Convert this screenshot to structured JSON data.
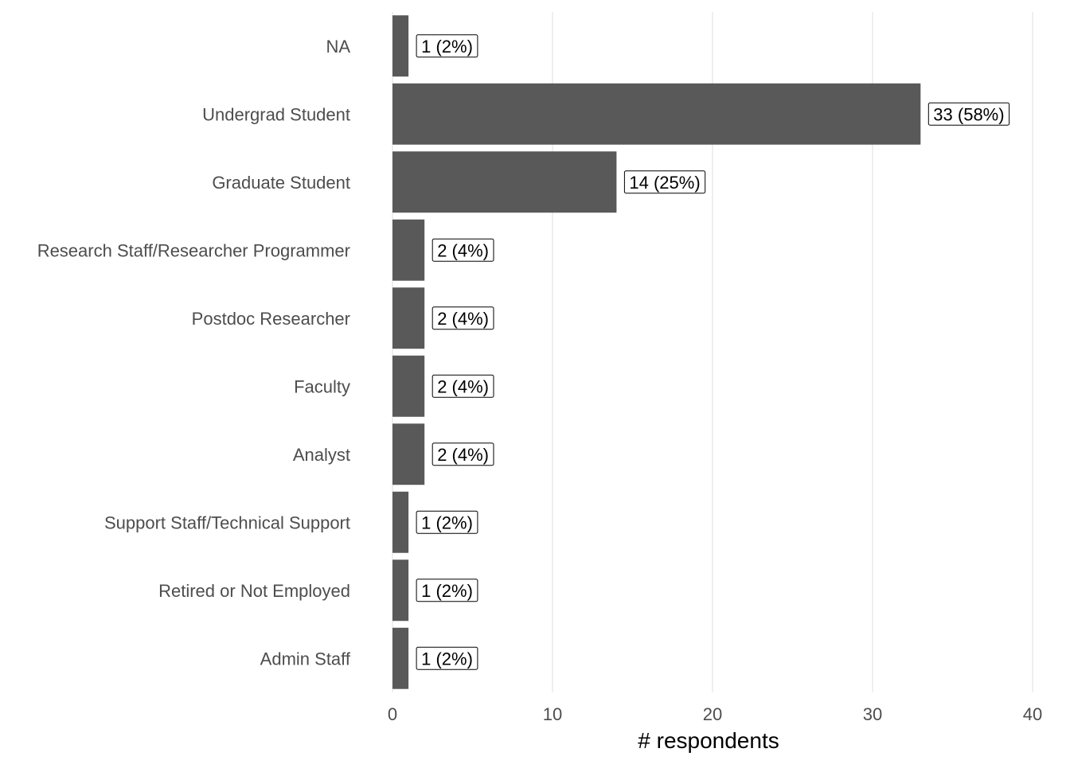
{
  "chart_data": {
    "type": "bar",
    "orientation": "horizontal",
    "categories": [
      "NA",
      "Undergrad Student",
      "Graduate Student",
      "Research Staff/Researcher Programmer",
      "Postdoc Researcher",
      "Faculty",
      "Analyst",
      "Support Staff/Technical Support",
      "Retired or Not Employed",
      "Admin Staff"
    ],
    "values": [
      1,
      33,
      14,
      2,
      2,
      2,
      2,
      1,
      1,
      1
    ],
    "data_labels": [
      "1 (2%)",
      "33 (58%)",
      "14 (25%)",
      "2 (4%)",
      "2 (4%)",
      "2 (4%)",
      "2 (4%)",
      "1 (2%)",
      "1 (2%)",
      "1 (2%)"
    ],
    "xlabel": "# respondents",
    "ylabel": "",
    "xlim": [
      0,
      40
    ],
    "xticks": [
      0,
      10,
      20,
      30,
      40
    ],
    "grid": "vertical",
    "legend": "none",
    "bar_color": "#595959"
  }
}
